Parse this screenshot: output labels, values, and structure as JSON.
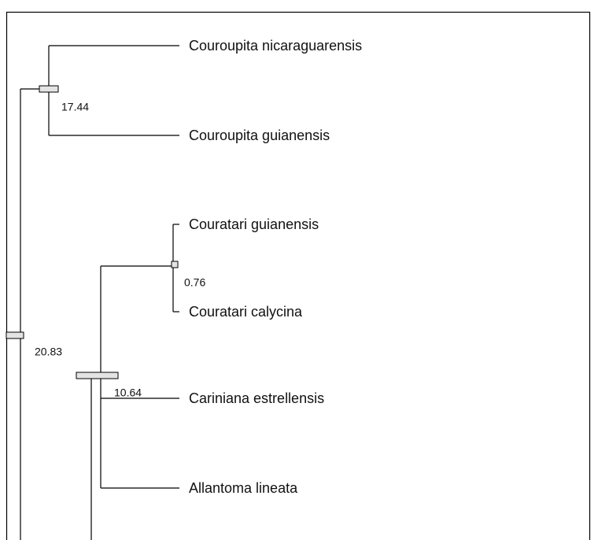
{
  "tips": [
    "Couroupita nicaraguarensis",
    "Couroupita guianensis",
    "Couratari guianensis",
    "Couratari calycina",
    "Cariniana estrellensis",
    "Allantoma lineata"
  ],
  "node_labels": [
    "17.44",
    "0.76",
    "20.83",
    "10.64"
  ]
}
